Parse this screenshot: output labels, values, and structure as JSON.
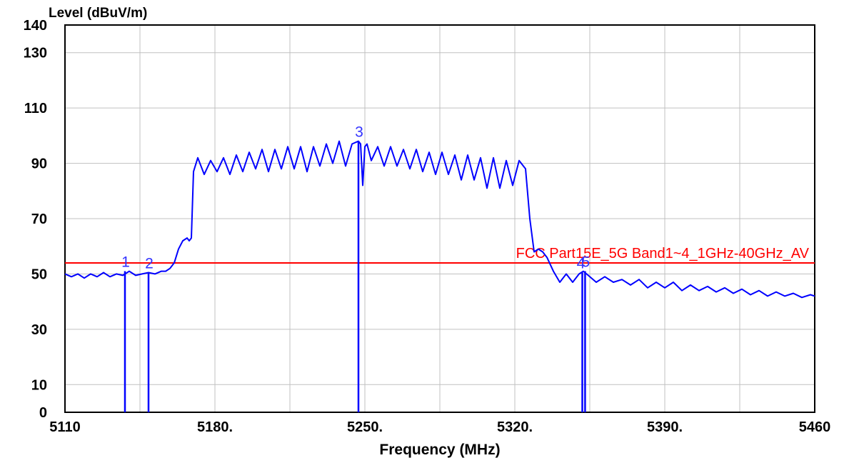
{
  "chart_data": {
    "type": "line",
    "ylabel": "Level (dBuV/m)",
    "xlabel": "Frequency (MHz)",
    "xlim": [
      5110,
      5460
    ],
    "ylim": [
      0,
      140
    ],
    "x_ticks": [
      5110,
      5180,
      5250,
      5320,
      5390,
      5460
    ],
    "x_tick_labels": [
      "5110",
      "5180.",
      "5250.",
      "5320.",
      "5390.",
      "5460"
    ],
    "y_ticks": [
      0,
      10,
      30,
      50,
      70,
      90,
      110,
      130,
      140
    ],
    "y_tick_labels": [
      "0",
      "10",
      "30",
      "50",
      "70",
      "90",
      "110",
      "130",
      "140"
    ],
    "grid": true,
    "colors": {
      "trace": "#0000ff",
      "limit": "#ff0000",
      "marker_label": "#3333ff",
      "grid": "#c0c0c0",
      "frame": "#000000"
    },
    "limit_line": {
      "label": "FCC Part15E_5G Band1~4_1GHz-40GHz_AV",
      "value": 54
    },
    "markers": [
      {
        "label": "1",
        "x": 5138,
        "y": 51
      },
      {
        "label": "2",
        "x": 5149,
        "y": 50.5
      },
      {
        "label": "3",
        "x": 5247,
        "y": 98
      },
      {
        "label": "4",
        "x": 5351.5,
        "y": 50.5
      },
      {
        "label": "5",
        "x": 5352.8,
        "y": 51
      }
    ],
    "series": [
      {
        "x": [
          5110,
          5113,
          5116,
          5119,
          5122,
          5125,
          5128,
          5131,
          5134,
          5137,
          5140,
          5143,
          5146,
          5149,
          5152,
          5155,
          5157,
          5159,
          5161,
          5163,
          5165,
          5167,
          5168,
          5169,
          5170,
          5172,
          5175,
          5178,
          5181,
          5184,
          5187,
          5190,
          5193,
          5196,
          5199,
          5202,
          5205,
          5208,
          5211,
          5214,
          5217,
          5220,
          5223,
          5226,
          5229,
          5232,
          5235,
          5238,
          5241,
          5244,
          5247,
          5248,
          5249,
          5250,
          5251,
          5253,
          5256,
          5259,
          5262,
          5265,
          5268,
          5271,
          5274,
          5277,
          5280,
          5283,
          5286,
          5289,
          5292,
          5295,
          5298,
          5301,
          5304,
          5307,
          5310,
          5313,
          5316,
          5319,
          5322,
          5325,
          5327,
          5329,
          5331,
          5333,
          5335,
          5338,
          5341,
          5344,
          5347,
          5350,
          5352,
          5355,
          5358,
          5362,
          5366,
          5370,
          5374,
          5378,
          5382,
          5386,
          5390,
          5394,
          5398,
          5402,
          5406,
          5410,
          5414,
          5418,
          5422,
          5426,
          5430,
          5434,
          5438,
          5442,
          5446,
          5450,
          5454,
          5458,
          5460
        ],
        "values": [
          50,
          49,
          50,
          48.5,
          50,
          49,
          50.5,
          49,
          50,
          49.5,
          51,
          49.5,
          50,
          50.5,
          50,
          51,
          51,
          52,
          54,
          59,
          62,
          63,
          62,
          63,
          87,
          92,
          86,
          91,
          87,
          92,
          86,
          93,
          87,
          94,
          88,
          95,
          87,
          95,
          88,
          96,
          88,
          96,
          87,
          96,
          89,
          97,
          90,
          98,
          89,
          97,
          98,
          97,
          82,
          96,
          97,
          91,
          96,
          89,
          96,
          89,
          95,
          88,
          95,
          87,
          94,
          86,
          94,
          86,
          93,
          84,
          93,
          84,
          92,
          81,
          92,
          81,
          91,
          82,
          91,
          88,
          70,
          58,
          59,
          58,
          56,
          51,
          47,
          50,
          47,
          50,
          51,
          49,
          47,
          49,
          47,
          48,
          46,
          48,
          45,
          47,
          45,
          47,
          44,
          46,
          44,
          45.5,
          43.5,
          45,
          43,
          44.5,
          42.5,
          44,
          42,
          43.5,
          42,
          43,
          41.5,
          42.5,
          42
        ]
      }
    ]
  }
}
